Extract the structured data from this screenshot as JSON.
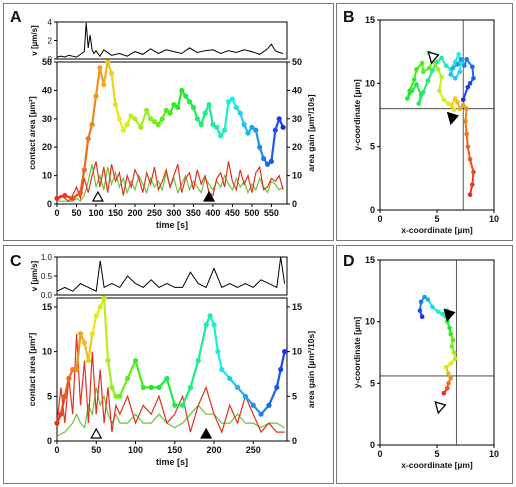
{
  "chart_data": [
    {
      "panel": "A",
      "type": "line",
      "velocity": {
        "ylabel": "v [µm/s]",
        "ylim": [
          0,
          4
        ],
        "yticks": [
          0,
          2,
          4
        ],
        "x": [
          0,
          10,
          20,
          30,
          40,
          50,
          60,
          70,
          75,
          80,
          85,
          90,
          95,
          100,
          110,
          120,
          140,
          160,
          180,
          200,
          220,
          240,
          260,
          280,
          300,
          320,
          340,
          360,
          380,
          400,
          420,
          440,
          460,
          480,
          500,
          520,
          540,
          550,
          560,
          570,
          580
        ],
        "values": [
          0.2,
          0.3,
          0.2,
          0.4,
          0.3,
          0.2,
          0.5,
          0.8,
          3.9,
          1.2,
          2.6,
          1.0,
          0.6,
          0.9,
          0.3,
          1.0,
          0.4,
          0.6,
          0.3,
          0.8,
          0.5,
          1.1,
          0.6,
          1.0,
          0.8,
          0.6,
          1.2,
          0.7,
          0.9,
          1.0,
          0.6,
          0.9,
          0.7,
          1.0,
          0.8,
          0.5,
          1.1,
          1.6,
          0.9,
          0.7,
          0.6
        ]
      },
      "xlabel": "time [s]",
      "xlim": [
        0,
        590
      ],
      "xticks": [
        0,
        50,
        100,
        150,
        200,
        250,
        300,
        350,
        400,
        450,
        500,
        550
      ],
      "ylabel_left": "contact area [µm²]",
      "ylim_left": [
        0,
        50
      ],
      "yticks_left": [
        0,
        10,
        20,
        30,
        40,
        50
      ],
      "ylabel_right": "area gain [µm²/10s]",
      "ylim_right": [
        0,
        50
      ],
      "yticks_right": [
        0,
        10,
        20,
        30,
        40,
        50
      ],
      "contact_area": {
        "x": [
          0,
          20,
          40,
          60,
          70,
          80,
          90,
          100,
          110,
          120,
          130,
          140,
          150,
          160,
          170,
          180,
          190,
          200,
          215,
          230,
          240,
          250,
          260,
          270,
          280,
          290,
          300,
          310,
          320,
          330,
          340,
          350,
          360,
          370,
          380,
          390,
          400,
          410,
          420,
          430,
          440,
          450,
          460,
          470,
          480,
          490,
          500,
          510,
          520,
          530,
          540,
          550,
          560,
          570,
          580
        ],
        "y": [
          2,
          3,
          2,
          4,
          12,
          23,
          28,
          38,
          48,
          42,
          50,
          46,
          35,
          30,
          26,
          28,
          31,
          30,
          27,
          33,
          30,
          29,
          28,
          30,
          33,
          32,
          35,
          34,
          40,
          38,
          36,
          34,
          30,
          28,
          32,
          35,
          28,
          27,
          24,
          26,
          36,
          37,
          34,
          32,
          28,
          25,
          27,
          26,
          20,
          16,
          14,
          15,
          26,
          30,
          27
        ]
      },
      "area_gain_red": {
        "x": [
          0,
          10,
          20,
          30,
          40,
          50,
          60,
          70,
          80,
          90,
          100,
          110,
          120,
          130,
          140,
          150,
          160,
          170,
          180,
          190,
          200,
          210,
          220,
          230,
          240,
          250,
          260,
          270,
          280,
          290,
          300,
          310,
          320,
          330,
          340,
          350,
          360,
          370,
          380,
          390,
          400,
          410,
          420,
          430,
          440,
          450,
          460,
          470,
          480,
          490,
          500,
          510,
          520,
          530,
          540,
          550,
          560,
          570,
          580
        ],
        "y": [
          2,
          3,
          2,
          1,
          3,
          6,
          2,
          9,
          4,
          10,
          15,
          6,
          13,
          4,
          14,
          8,
          11,
          3,
          10,
          6,
          12,
          9,
          4,
          11,
          7,
          13,
          5,
          8,
          12,
          6,
          10,
          14,
          4,
          9,
          11,
          5,
          12,
          7,
          10,
          4,
          3,
          9,
          11,
          6,
          15,
          8,
          5,
          12,
          7,
          10,
          4,
          11,
          13,
          5,
          6,
          9,
          8,
          10,
          5
        ]
      },
      "area_gain_green": {
        "x": [
          0,
          10,
          20,
          30,
          40,
          50,
          60,
          70,
          80,
          90,
          100,
          110,
          120,
          130,
          140,
          150,
          160,
          170,
          180,
          190,
          200,
          210,
          220,
          230,
          240,
          250,
          260,
          270,
          280,
          290,
          300,
          310,
          320,
          330,
          340,
          350,
          360,
          370,
          380,
          390,
          400,
          410,
          420,
          430,
          440,
          450,
          460,
          470,
          480,
          490,
          500,
          510,
          520,
          530,
          540,
          550,
          560,
          570,
          580
        ],
        "y": [
          1,
          1,
          1,
          1,
          1,
          2,
          1,
          3,
          8,
          14,
          6,
          10,
          5,
          13,
          7,
          11,
          6,
          9,
          4,
          8,
          5,
          10,
          7,
          4,
          9,
          6,
          8,
          5,
          11,
          6,
          9,
          4,
          7,
          10,
          5,
          8,
          6,
          4,
          9,
          7,
          5,
          8,
          6,
          10,
          7,
          5,
          9,
          6,
          8,
          4,
          7,
          5,
          9,
          6,
          4,
          8,
          7,
          5,
          6
        ]
      },
      "markers": [
        {
          "type": "open",
          "x": 105
        },
        {
          "type": "filled",
          "x": 390
        }
      ]
    },
    {
      "panel": "B",
      "type": "scatter",
      "xlabel": "x-coordinate [µm]",
      "ylabel": "y-coordinate [µm]",
      "xlim": [
        0,
        10
      ],
      "ylim": [
        0,
        15
      ],
      "xticks": [
        0,
        5,
        10
      ],
      "yticks": [
        0,
        5,
        10,
        15
      ],
      "crosshair": {
        "x": 7.3,
        "y": 8.0
      },
      "trajectory": {
        "x": [
          7.9,
          8.1,
          8.2,
          7.9,
          7.7,
          7.6,
          7.5,
          7.6,
          7.3,
          7.0,
          6.8,
          6.6,
          6.3,
          6.5,
          6.0,
          5.6,
          5.2,
          5.4,
          5.1,
          4.8,
          4.6,
          4.3,
          4.6,
          4.3,
          3.8,
          3.7,
          3.2,
          3.0,
          2.6,
          2.4,
          2.8,
          3.2,
          3.6,
          3.4,
          3.8,
          4.2,
          4.6,
          5.0,
          5.4,
          5.8,
          6.2,
          6.6,
          6.9,
          7.1,
          7.0,
          6.6,
          6.2,
          6.4,
          6.8,
          7.1,
          7.4,
          7.6,
          8.1,
          8.2,
          7.9,
          7.7,
          7.3
        ],
        "y": [
          1.2,
          2.0,
          3.0,
          4.0,
          5.0,
          6.0,
          7.0,
          8.0,
          8.3,
          8.0,
          8.5,
          8.8,
          8.3,
          7.9,
          8.4,
          8.7,
          9.4,
          10.5,
          11.1,
          11.6,
          12.0,
          12.4,
          11.7,
          11.2,
          10.9,
          11.6,
          11.1,
          10.3,
          9.4,
          8.8,
          9.4,
          9.9,
          9.1,
          8.4,
          9.3,
          10.2,
          11.0,
          11.7,
          12.0,
          11.4,
          11.1,
          11.7,
          12.3,
          11.6,
          10.9,
          10.4,
          10.7,
          11.2,
          11.5,
          11.9,
          11.4,
          11.9,
          11.3,
          10.4,
          10.0,
          9.7,
          8.7
        ]
      },
      "markers": [
        {
          "type": "open",
          "x": 4.6,
          "y": 12.0
        },
        {
          "type": "filled",
          "x": 6.3,
          "y": 7.2
        }
      ]
    },
    {
      "panel": "C",
      "type": "line",
      "velocity": {
        "ylabel": "v [µm/s]",
        "ylim": [
          0,
          1.0
        ],
        "yticks": [
          0.0,
          0.5,
          1.0
        ],
        "x": [
          0,
          10,
          20,
          30,
          40,
          50,
          55,
          60,
          70,
          80,
          90,
          100,
          110,
          120,
          130,
          140,
          150,
          160,
          170,
          180,
          190,
          200,
          210,
          220,
          230,
          240,
          250,
          260,
          270,
          280,
          285,
          290
        ],
        "values": [
          0.1,
          0.2,
          0.1,
          0.3,
          0.2,
          0.1,
          0.9,
          0.2,
          0.3,
          0.2,
          0.5,
          0.3,
          0.2,
          0.4,
          0.2,
          0.3,
          0.2,
          0.2,
          0.6,
          0.3,
          0.2,
          0.7,
          0.2,
          0.3,
          0.2,
          0.3,
          0.2,
          0.4,
          0.3,
          0.2,
          1.0,
          0.3
        ]
      },
      "xlabel": "time [s]",
      "xlim": [
        0,
        293
      ],
      "xticks": [
        0,
        50,
        100,
        150,
        200,
        250
      ],
      "ylabel_left": "contact area [µm²]",
      "ylim_left": [
        0,
        16
      ],
      "yticks_left": [
        0,
        5,
        10,
        15
      ],
      "ylabel_right": "area gain [µm²/10s]",
      "ylim_right": [
        0,
        16
      ],
      "yticks_right": [
        0,
        5,
        10,
        15
      ],
      "contact_area": {
        "x": [
          0,
          5,
          10,
          15,
          20,
          25,
          30,
          35,
          40,
          45,
          50,
          55,
          60,
          65,
          70,
          75,
          80,
          90,
          100,
          110,
          120,
          130,
          140,
          150,
          160,
          170,
          180,
          190,
          195,
          200,
          205,
          210,
          220,
          230,
          240,
          250,
          260,
          270,
          280,
          285,
          290
        ],
        "y": [
          2,
          3,
          5,
          7,
          8,
          8,
          12,
          11,
          9,
          12,
          14,
          15,
          16,
          9,
          6,
          5,
          5,
          7,
          9,
          6,
          6,
          6,
          7,
          4,
          4,
          6,
          9,
          13,
          14,
          13,
          10,
          8,
          7,
          6,
          5,
          4,
          3,
          4,
          6,
          8,
          10
        ]
      },
      "area_gain_red": {
        "x": [
          0,
          5,
          10,
          15,
          20,
          25,
          30,
          35,
          40,
          45,
          50,
          55,
          60,
          65,
          70,
          75,
          80,
          90,
          100,
          110,
          120,
          130,
          140,
          150,
          160,
          170,
          180,
          190,
          200,
          210,
          220,
          230,
          240,
          250,
          260,
          270,
          280,
          290
        ],
        "y": [
          2,
          6,
          2,
          7,
          3,
          12,
          4,
          9,
          2,
          10,
          3,
          8,
          2,
          6,
          1,
          4,
          3,
          5,
          2,
          4,
          3,
          5,
          2,
          3,
          5,
          1,
          4,
          6,
          3,
          1,
          4,
          2,
          5,
          3,
          1,
          2,
          1,
          1
        ]
      },
      "area_gain_green": {
        "x": [
          0,
          5,
          10,
          15,
          20,
          25,
          30,
          35,
          40,
          45,
          50,
          55,
          60,
          65,
          70,
          75,
          80,
          90,
          100,
          110,
          120,
          130,
          140,
          150,
          160,
          170,
          180,
          190,
          200,
          210,
          220,
          230,
          240,
          250,
          260,
          270,
          280,
          290
        ],
        "y": [
          0.5,
          0.8,
          1,
          1.5,
          2,
          3,
          2,
          1.5,
          4,
          3,
          6,
          4,
          5,
          3,
          2,
          3,
          2,
          2,
          3,
          2,
          2,
          3,
          2,
          1.5,
          2,
          3,
          4,
          3,
          3,
          2,
          2,
          3,
          2,
          2,
          1.5,
          2,
          2,
          1.5
        ]
      },
      "markers": [
        {
          "type": "open",
          "x": 50
        },
        {
          "type": "filled",
          "x": 190
        }
      ]
    },
    {
      "panel": "D",
      "type": "scatter",
      "xlabel": "x-coordinate [µm]",
      "ylabel": "y-coordinate [µm]",
      "xlim": [
        0,
        10
      ],
      "ylim": [
        0,
        15
      ],
      "xticks": [
        0,
        5,
        10
      ],
      "yticks": [
        0,
        5,
        10,
        15
      ],
      "crosshair": {
        "x": 6.7,
        "y": 5.6
      },
      "trajectory": {
        "x": [
          5.6,
          5.9,
          6.0,
          6.2,
          6.0,
          5.8,
          6.2,
          6.6,
          6.5,
          6.3,
          6.4,
          6.2,
          6.1,
          5.9,
          5.8,
          5.9,
          5.5,
          5.1,
          4.6,
          4.2,
          3.9,
          3.6,
          3.5,
          3.7
        ],
        "y": [
          4.2,
          4.6,
          5.0,
          5.4,
          5.8,
          6.3,
          6.6,
          7.0,
          7.5,
          8.0,
          8.5,
          9.0,
          9.5,
          10.0,
          10.4,
          10.9,
          10.6,
          10.8,
          11.2,
          11.8,
          12.0,
          11.6,
          10.9,
          10.4
        ],
        "reversed_color": true
      },
      "markers": [
        {
          "type": "open",
          "x": 5.2,
          "y": 3.0
        },
        {
          "type": "filled",
          "x": 6.0,
          "y": 10.5
        }
      ]
    }
  ],
  "panel_labels": [
    "A",
    "B",
    "C",
    "D"
  ]
}
